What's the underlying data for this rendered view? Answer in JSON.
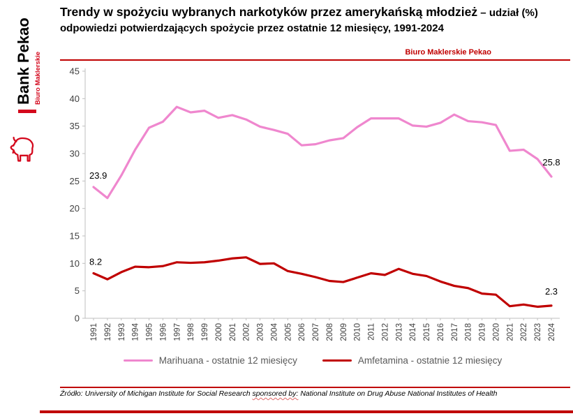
{
  "sidebar": {
    "brand": "Bank Pekao",
    "sub_brand": "Biuro Maklerskie",
    "logo": "pekao-bison"
  },
  "header": {
    "title_emphasis": "Trendy w spożyciu wybranych narkotyków przez amerykańską młodzież",
    "title_rest": " – udział (%) odpowiedzi potwierdzających spożycie przez ostatnie 12 miesięcy, 1991-2024",
    "brand_label": "Biuro Maklerskie Pekao"
  },
  "colors": {
    "accent_red": "#c00000",
    "logo_red": "#d4071c",
    "marijuana_pink": "#ef87ce",
    "amphetamine_red": "#c00000",
    "axis_gray": "#bfbfbf",
    "tick_text": "#404040",
    "legend_text": "#595959"
  },
  "chart_data": {
    "type": "line",
    "title": "Trendy w spożyciu wybranych narkotyków przez amerykańską młodzież – udział (%) odpowiedzi potwierdzających spożycie przez ostatnie 12 miesięcy, 1991-2024",
    "xlabel": "",
    "ylabel": "",
    "ylim": [
      0,
      45
    ],
    "ytick_step": 5,
    "grid": false,
    "legend_position": "bottom",
    "x": [
      1991,
      1992,
      1993,
      1994,
      1995,
      1996,
      1997,
      1998,
      1999,
      2000,
      2001,
      2002,
      2003,
      2004,
      2005,
      2006,
      2007,
      2008,
      2009,
      2010,
      2011,
      2012,
      2013,
      2014,
      2015,
      2016,
      2017,
      2018,
      2019,
      2020,
      2021,
      2022,
      2023,
      2024
    ],
    "series": [
      {
        "name": "Marihuana - ostatnie 12 miesięcy",
        "color": "#ef87ce",
        "values": [
          23.9,
          21.9,
          26.0,
          30.7,
          34.7,
          35.8,
          38.5,
          37.5,
          37.8,
          36.5,
          37.0,
          36.2,
          34.9,
          34.3,
          33.6,
          31.5,
          31.7,
          32.4,
          32.8,
          34.8,
          36.4,
          36.4,
          36.4,
          35.1,
          34.9,
          35.6,
          37.1,
          35.9,
          35.7,
          35.2,
          30.5,
          30.7,
          29.0,
          25.8
        ]
      },
      {
        "name": "Amfetamina - ostatnie 12 miesięcy",
        "color": "#c00000",
        "values": [
          8.2,
          7.1,
          8.4,
          9.4,
          9.3,
          9.5,
          10.2,
          10.1,
          10.2,
          10.5,
          10.9,
          11.1,
          9.9,
          10.0,
          8.6,
          8.1,
          7.5,
          6.8,
          6.6,
          7.4,
          8.2,
          7.9,
          9.0,
          8.1,
          7.7,
          6.7,
          5.9,
          5.5,
          4.5,
          4.3,
          2.2,
          2.5,
          2.1,
          2.3
        ]
      }
    ],
    "annotations": [
      {
        "series": 0,
        "point": "first",
        "text": "23.9"
      },
      {
        "series": 0,
        "point": "last",
        "text": "25.8"
      },
      {
        "series": 1,
        "point": "first",
        "text": "8.2"
      },
      {
        "series": 1,
        "point": "last",
        "text": "2.3"
      }
    ]
  },
  "footer": {
    "source_prefix": "Źródło: University of Michigan Institute for Social Research ",
    "source_underlined": "sponsored by:",
    "source_suffix": " National Institute on Drug Abuse National Institutes of Health"
  }
}
